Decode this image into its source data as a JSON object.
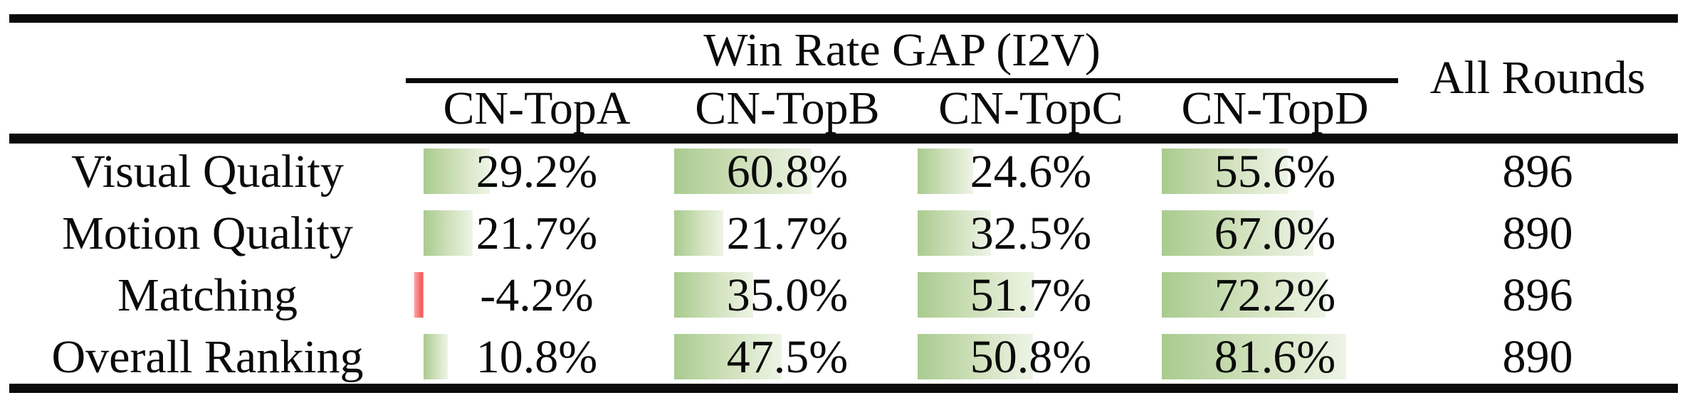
{
  "header": {
    "span_title": "Win Rate GAP (I2V)",
    "all_rounds_label": "All Rounds",
    "columns": [
      "CN-TopA",
      "CN-TopB",
      "CN-TopC",
      "CN-TopD"
    ]
  },
  "rows": [
    {
      "label": "Visual Quality",
      "values": [
        29.2,
        60.8,
        24.6,
        55.6
      ],
      "display": [
        "29.2%",
        "60.8%",
        "24.6%",
        "55.6%"
      ],
      "all_rounds": "896"
    },
    {
      "label": "Motion Quality",
      "values": [
        21.7,
        21.7,
        32.5,
        67.0
      ],
      "display": [
        "21.7%",
        "21.7%",
        "32.5%",
        "67.0%"
      ],
      "all_rounds": "890"
    },
    {
      "label": "Matching",
      "values": [
        -4.2,
        35.0,
        51.7,
        72.2
      ],
      "display": [
        "-4.2%",
        "35.0%",
        "51.7%",
        "72.2%"
      ],
      "all_rounds": "896"
    },
    {
      "label": "Overall Ranking",
      "values": [
        10.8,
        47.5,
        50.8,
        81.6
      ],
      "display": [
        "10.8%",
        "47.5%",
        "50.8%",
        "81.6%"
      ],
      "all_rounds": "890"
    }
  ],
  "colors": {
    "bar_green": "#a9cb8f",
    "bar_green_mid": "#cfe0ba",
    "bar_green_light": "#eef4e6",
    "bar_red": "#f4605f",
    "bar_red_light": "#fcaaaa",
    "rule_black": "#0a0a0a"
  },
  "chart_data": {
    "type": "table",
    "title": "Win Rate GAP (I2V)",
    "columns": [
      "CN-TopA",
      "CN-TopB",
      "CN-TopC",
      "CN-TopD",
      "All Rounds"
    ],
    "rows": [
      {
        "label": "Visual Quality",
        "win_rate_gap_percent": [
          29.2,
          60.8,
          24.6,
          55.6
        ],
        "all_rounds": 896
      },
      {
        "label": "Motion Quality",
        "win_rate_gap_percent": [
          21.7,
          21.7,
          32.5,
          67.0
        ],
        "all_rounds": 890
      },
      {
        "label": "Matching",
        "win_rate_gap_percent": [
          -4.2,
          35.0,
          51.7,
          72.2
        ],
        "all_rounds": 896
      },
      {
        "label": "Overall Ranking",
        "win_rate_gap_percent": [
          10.8,
          47.5,
          50.8,
          81.6
        ],
        "all_rounds": 890
      }
    ]
  }
}
